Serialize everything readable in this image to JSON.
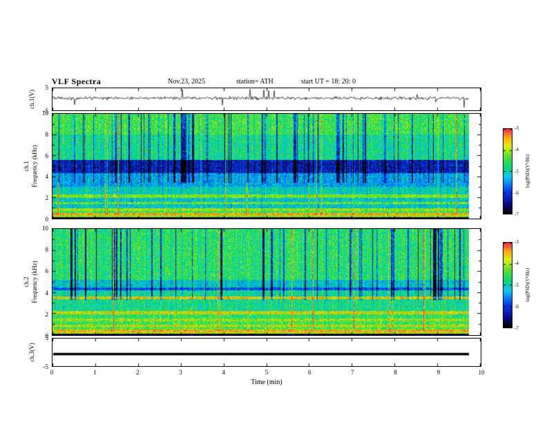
{
  "header": {
    "title": "VLF Spectra",
    "date": "Nov.23, 2025",
    "station": "station= ATH",
    "start_ut": "start UT =  18: 20: 0"
  },
  "x_axis": {
    "label": "Time  (min)",
    "ticks": [
      "0",
      "1",
      "2",
      "3",
      "4",
      "5",
      "6",
      "7",
      "8",
      "9",
      "10"
    ]
  },
  "panels": {
    "ch1_wave": {
      "label": "ch.1(V)",
      "y_ticks": [
        "5",
        "-5"
      ]
    },
    "ch1_spec": {
      "label_line1": "ch.1",
      "label_line2": "Frequency  (kHz)",
      "y_ticks": [
        "10",
        "8",
        "6",
        "4",
        "2",
        "0"
      ]
    },
    "ch2_spec": {
      "label_line1": "ch.2",
      "label_line2": "Frequency  (kHz)",
      "y_ticks": [
        "10",
        "8",
        "6",
        "4",
        "2",
        "0"
      ]
    },
    "ch3_wave": {
      "label": "ch.3(V)",
      "y_ticks": [
        "5",
        "-5"
      ]
    }
  },
  "colorbar": {
    "label": "log(PSD)(V²/Hz)",
    "ticks": [
      "-3",
      "-4",
      "-5",
      "-6",
      "-7"
    ],
    "zlim": [
      -7,
      -3
    ],
    "stops": [
      [
        0,
        0,
        0,
        0
      ],
      [
        0.12,
        10,
        10,
        150
      ],
      [
        0.28,
        0,
        70,
        255
      ],
      [
        0.43,
        0,
        200,
        255
      ],
      [
        0.56,
        0,
        220,
        110
      ],
      [
        0.68,
        90,
        225,
        40
      ],
      [
        0.8,
        230,
        240,
        0
      ],
      [
        0.9,
        255,
        170,
        0
      ],
      [
        1,
        255,
        40,
        80
      ]
    ]
  },
  "chart_data": [
    {
      "type": "line",
      "panel": "ch1_waveform",
      "ylabel": "ch.1(V)",
      "xlabel": "Time (min)",
      "xlim": [
        0,
        10
      ],
      "ylim": [
        -5,
        5
      ],
      "data_fraction": 0.973,
      "flat": false,
      "signal": {
        "mean_V": 0.5,
        "noise_amp_V": 0.9,
        "spike_prob": 0.02,
        "spike_amp_V": 3.2
      },
      "description": "Broadband noisy voltage waveform centred near 0 V; continuous ~±1 V fluctuations with frequent impulsive spikes reaching about ±4 V over the full 0–9.7 min record."
    },
    {
      "type": "heatmap",
      "panel": "ch1_spectrogram",
      "ylabel": "ch.1 Frequency (kHz)",
      "xlim": [
        0,
        10
      ],
      "ylim": [
        0,
        10
      ],
      "zlabel": "log(PSD)(V²/Hz)",
      "zlim": [
        -7,
        -3
      ],
      "data_fraction": 0.973,
      "streak_prob": 0.1,
      "streak_min_freq": 3.4,
      "bands": [
        {
          "f": [
            8.0,
            10.01
          ],
          "level": -4.5,
          "note": "patchy green-yellow"
        },
        {
          "f": [
            5.6,
            8.0
          ],
          "level": -4.8,
          "note": "green with vertical blue dropout streaks"
        },
        {
          "f": [
            4.35,
            5.6
          ],
          "level": -6.3,
          "note": "persistent dark-blue low-power band"
        },
        {
          "f": [
            3.0,
            4.35
          ],
          "level": -5.4,
          "note": "cyan-blue speckle"
        },
        {
          "f": [
            2.3,
            3.0
          ],
          "level": -5.0,
          "note": "cyan-green"
        },
        {
          "f": [
            2.0,
            2.3
          ],
          "level": -4.2,
          "note": "yellow-green line"
        },
        {
          "f": [
            1.6,
            2.0
          ],
          "level": -5.1,
          "note": "cyan"
        },
        {
          "f": [
            1.35,
            1.6
          ],
          "level": -4.3,
          "note": "yellow-green line"
        },
        {
          "f": [
            1.0,
            1.35
          ],
          "level": -5.1,
          "note": "cyan"
        },
        {
          "f": [
            0.75,
            1.0
          ],
          "level": -4.1,
          "note": "yellow-green band"
        },
        {
          "f": [
            0.55,
            0.75
          ],
          "level": -4.5,
          "note": "green"
        },
        {
          "f": [
            0.3,
            0.55
          ],
          "level": -3.5,
          "note": "red-orange band (mains harmonics)"
        },
        {
          "f": [
            0.12,
            0.3
          ],
          "level": -4.0,
          "note": "yellow"
        },
        {
          "f": [
            0.0,
            0.12
          ],
          "level": -6.9,
          "note": "black baseline stripe"
        }
      ],
      "description": "0–10 kHz spectrogram, mostly green/cyan background with many narrow vertical blue attenuation streaks above ~3.5 kHz, a dark blue band 4.4–5.6 kHz, bright yellow lines near 2.1 and 1.5 kHz and strong red/yellow power below 1 kHz."
    },
    {
      "type": "heatmap",
      "panel": "ch2_spectrogram",
      "ylabel": "ch.2 Frequency (kHz)",
      "xlim": [
        0,
        10
      ],
      "ylim": [
        0,
        10
      ],
      "zlabel": "log(PSD)(V²/Hz)",
      "zlim": [
        -7,
        -3
      ],
      "data_fraction": 0.973,
      "streak_prob": 0.085,
      "streak_min_freq": 3.3,
      "bands": [
        {
          "f": [
            5.2,
            10.01
          ],
          "level": -4.65,
          "note": "green with vertical blue dropout streaks"
        },
        {
          "f": [
            4.45,
            5.2
          ],
          "level": -5.15,
          "note": "cyan"
        },
        {
          "f": [
            4.25,
            4.45
          ],
          "level": -5.9,
          "note": "thin dark line"
        },
        {
          "f": [
            3.65,
            4.25
          ],
          "level": -4.9,
          "note": "green-cyan"
        },
        {
          "f": [
            3.35,
            3.65
          ],
          "level": -3.7,
          "note": "strong yellow-red band"
        },
        {
          "f": [
            2.25,
            3.35
          ],
          "level": -4.8,
          "note": "green"
        },
        {
          "f": [
            1.95,
            2.25
          ],
          "level": -3.9,
          "note": "yellow band with red bursts"
        },
        {
          "f": [
            1.55,
            1.95
          ],
          "level": -4.6,
          "note": "green"
        },
        {
          "f": [
            1.3,
            1.55
          ],
          "level": -4.1,
          "note": "yellow-green line"
        },
        {
          "f": [
            1.0,
            1.3
          ],
          "level": -4.5,
          "note": "green"
        },
        {
          "f": [
            0.75,
            1.0
          ],
          "level": -3.9,
          "note": "yellow band"
        },
        {
          "f": [
            0.55,
            0.75
          ],
          "level": -4.4,
          "note": "green"
        },
        {
          "f": [
            0.3,
            0.55
          ],
          "level": -3.5,
          "note": "red-orange band"
        },
        {
          "f": [
            0.12,
            0.3
          ],
          "level": -3.9,
          "note": "yellow"
        },
        {
          "f": [
            0.0,
            0.12
          ],
          "level": -6.9,
          "note": "black baseline stripe"
        }
      ],
      "description": "0–10 kHz spectrogram, greener overall than ch.1; strong yellow/red horizontal bands near 3.5, 2.1, 0.9 and below 0.6 kHz, blue vertical dropout streaks above ~3.3 kHz."
    },
    {
      "type": "line",
      "panel": "ch3_waveform",
      "ylabel": "ch.3(V)",
      "xlabel": "Time (min)",
      "xlim": [
        0,
        10
      ],
      "ylim": [
        -5,
        5
      ],
      "data_fraction": 0.973,
      "flat": true,
      "signal": {
        "mean_V": -0.6,
        "noise_amp_V": 0,
        "spike_prob": 0,
        "spike_amp_V": 0
      },
      "description": "Flat (dead) channel: constant thick black trace near -0.5 V for the whole record."
    }
  ]
}
